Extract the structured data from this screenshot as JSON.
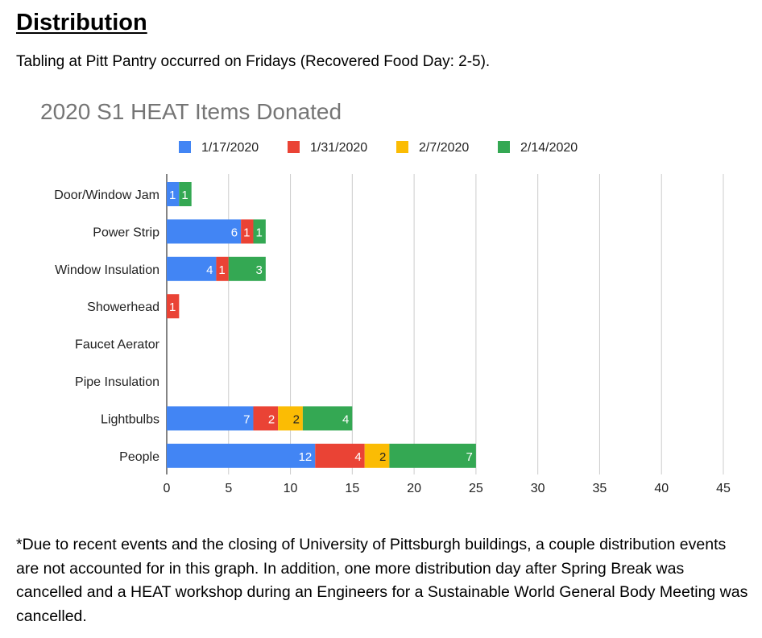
{
  "heading": "Distribution",
  "intro": "Tabling at Pitt Pantry occurred on Fridays (Recovered Food Day: 2-5).",
  "footnote": "*Due to recent events and the closing of University of Pittsburgh buildings, a couple distribution events are not accounted for in this graph. In addition, one more distribution day after Spring Break was cancelled and a HEAT workshop during an Engineers for a Sustainable World General Body Meeting was cancelled.",
  "chart_data": {
    "type": "bar",
    "orientation": "horizontal",
    "stacked": true,
    "title": "2020 S1 HEAT Items Donated",
    "categories": [
      "Door/Window Jam",
      "Power Strip",
      "Window Insulation",
      "Showerhead",
      "Faucet Aerator",
      "Pipe Insulation",
      "Lightbulbs",
      "People"
    ],
    "series": [
      {
        "name": "1/17/2020",
        "color": "#4285f4",
        "values": [
          1,
          6,
          4,
          0,
          0,
          0,
          7,
          12
        ]
      },
      {
        "name": "1/31/2020",
        "color": "#ea4335",
        "values": [
          0,
          1,
          1,
          1,
          0,
          0,
          2,
          4
        ]
      },
      {
        "name": "2/7/2020",
        "color": "#fbbc04",
        "values": [
          0,
          0,
          0,
          0,
          0,
          0,
          2,
          2
        ]
      },
      {
        "name": "2/14/2020",
        "color": "#34a853",
        "values": [
          1,
          1,
          3,
          0,
          0,
          0,
          4,
          7
        ]
      }
    ],
    "xlim": [
      0,
      45
    ],
    "xticks": [
      "0",
      "5",
      "10",
      "15",
      "20",
      "25",
      "30",
      "35",
      "40",
      "45"
    ],
    "grid": "vertical",
    "legend": "top",
    "data_labels": true
  }
}
